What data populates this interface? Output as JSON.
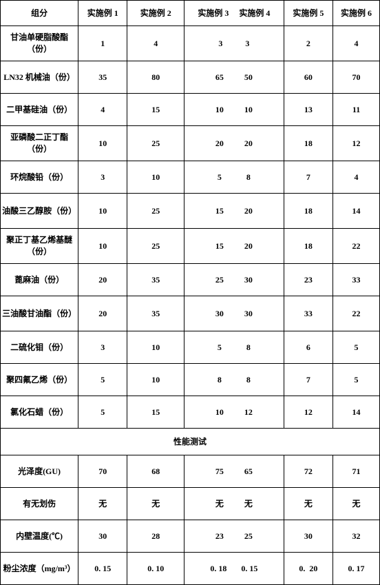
{
  "table": {
    "columns": [
      "组分",
      "实施例 1",
      "实施例 2",
      "实施例 3     实施例 4",
      "实施例 5",
      "实施例 6"
    ],
    "rows": [
      {
        "label": "甘油单硬脂酸酯（份）",
        "v": [
          "1",
          "4",
          "3           3",
          "2",
          "4"
        ],
        "tall": true
      },
      {
        "label": "LN32 机械油（份）",
        "v": [
          "35",
          "80",
          "65          50",
          "60",
          "70"
        ],
        "tall": false
      },
      {
        "label": "二甲基硅油（份）",
        "v": [
          "4",
          "15",
          "10          10",
          "13",
          "11"
        ],
        "tall": false
      },
      {
        "label": "亚磷酸二正丁酯（份）",
        "v": [
          "10",
          "25",
          "20          20",
          "18",
          "12"
        ],
        "tall": true
      },
      {
        "label": "环烷酸铅（份）",
        "v": [
          "3",
          "10",
          "5            8",
          "7",
          "4"
        ],
        "tall": false
      },
      {
        "label": "油酸三乙醇胺（份）",
        "v": [
          "10",
          "25",
          "15          20",
          "18",
          "14"
        ],
        "tall": true
      },
      {
        "label": "聚正丁基乙烯基醚（份）",
        "v": [
          "10",
          "25",
          "15          20",
          "18",
          "22"
        ],
        "tall": true
      },
      {
        "label": "蓖麻油（份）",
        "v": [
          "20",
          "35",
          "25          30",
          "23",
          "33"
        ],
        "tall": false
      },
      {
        "label": "三油酸甘油酯（份）",
        "v": [
          "20",
          "35",
          "30          30",
          "33",
          "22"
        ],
        "tall": true
      },
      {
        "label": "二硫化钼（份）",
        "v": [
          "3",
          "10",
          "5            8",
          "6",
          "5"
        ],
        "tall": false
      },
      {
        "label": "聚四氟乙烯（份）",
        "v": [
          "5",
          "10",
          "8            8",
          "7",
          "5"
        ],
        "tall": false
      },
      {
        "label": "氯化石蜡（份）",
        "v": [
          "5",
          "15",
          "10          12",
          "12",
          "14"
        ],
        "tall": false
      }
    ],
    "section_title": "性能测试",
    "perf_rows": [
      {
        "label": "光泽度(GU)",
        "v": [
          "70",
          "68",
          "75          65",
          "72",
          "71"
        ]
      },
      {
        "label": "有无划伤",
        "v": [
          "无",
          "无",
          "无          无",
          "无",
          "无"
        ]
      },
      {
        "label": "内壁温度(℃)",
        "v": [
          "30",
          "28",
          "23          25",
          "30",
          "32"
        ]
      },
      {
        "label": "粉尘浓度（mg/m³）",
        "v": [
          "0. 15",
          "0. 10",
          "0. 18       0. 15",
          "0.  20",
          "0. 17"
        ]
      }
    ],
    "border_color": "#000000",
    "background_color": "#ffffff",
    "font_size": 12,
    "font_weight": "bold"
  }
}
